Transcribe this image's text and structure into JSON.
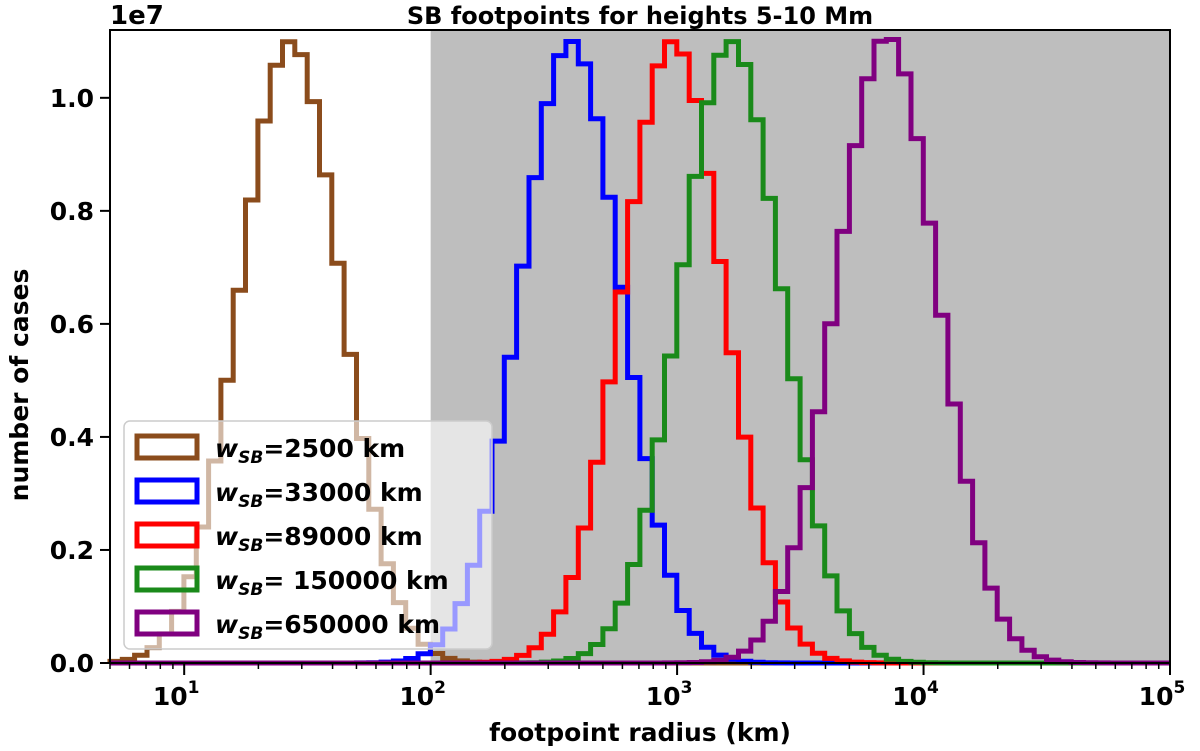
{
  "chart_data": {
    "type": "histogram-step",
    "title": "SB footpoints for heights 5-10 Mm",
    "xlabel": "footpoint radius (km)",
    "ylabel": "number of cases",
    "y_offset_label": "1e7",
    "xscale": "log",
    "xlim": [
      5,
      100000
    ],
    "ylim": [
      0,
      1.12
    ],
    "y_units": "1e7",
    "x_tick_labels": [
      {
        "base": "10",
        "exp": "1",
        "value": 10
      },
      {
        "base": "10",
        "exp": "2",
        "value": 100
      },
      {
        "base": "10",
        "exp": "3",
        "value": 1000
      },
      {
        "base": "10",
        "exp": "4",
        "value": 10000
      },
      {
        "base": "10",
        "exp": "5",
        "value": 100000
      }
    ],
    "y_ticks": [
      0.0,
      0.2,
      0.4,
      0.6,
      0.8,
      1.0
    ],
    "y_tick_labels": [
      "0.0",
      "0.2",
      "0.4",
      "0.6",
      "0.8",
      "1.0"
    ],
    "shaded_region": {
      "x_from": 100,
      "x_to": 100000,
      "color": "#bebebe"
    },
    "legend_position": "lower-left",
    "series": [
      {
        "name": "w_SB=2500 km",
        "legend_symbol": "w",
        "legend_subscript": "SB",
        "legend_rest": "=2500 km",
        "color": "#8b4c1c",
        "peak_x": 27,
        "peak_y": 1.1,
        "sigma_dex": 0.205
      },
      {
        "name": "w_SB=33000 km",
        "legend_symbol": "w",
        "legend_subscript": "SB",
        "legend_rest": "=33000 km",
        "color": "#0000ff",
        "peak_x": 370,
        "peak_y": 1.1,
        "sigma_dex": 0.205
      },
      {
        "name": "w_SB=89000 km",
        "legend_symbol": "w",
        "legend_subscript": "SB",
        "legend_rest": "=89000 km",
        "color": "#ff0000",
        "peak_x": 960,
        "peak_y": 1.1,
        "sigma_dex": 0.205
      },
      {
        "name": "w_SB= 150000 km",
        "legend_symbol": "w",
        "legend_subscript": "SB",
        "legend_rest": "= 150000 km",
        "color": "#1a8a1a",
        "peak_x": 1650,
        "peak_y": 1.1,
        "sigma_dex": 0.205
      },
      {
        "name": "w_SB=650000 km",
        "legend_symbol": "w",
        "legend_subscript": "SB",
        "legend_rest": "=650000 km",
        "color": "#800080",
        "peak_x": 7100,
        "peak_y": 1.11,
        "sigma_dex": 0.205
      }
    ]
  }
}
